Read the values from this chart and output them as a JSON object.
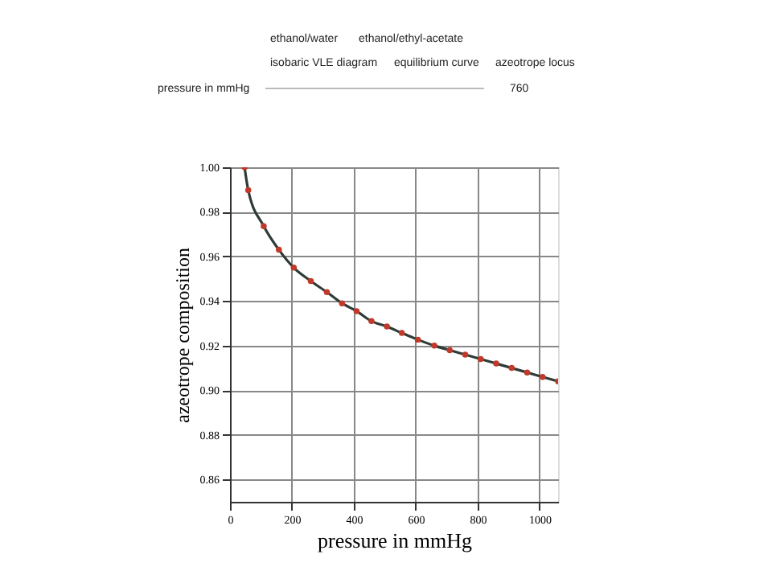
{
  "chart_data": {
    "type": "line",
    "xlabel": "pressure in mmHg",
    "ylabel": "azeotrope composition",
    "annotations": [
      "ethanol/water",
      "ethanol/ethyl-acetate",
      "isobaric VLE diagram",
      "equilibrium curve",
      "azeotrope locus",
      "pressure in mmHg",
      "760"
    ],
    "series": [
      {
        "color": "#2f3b35",
        "marker": "none",
        "x": [
          47,
          59,
          109,
          158,
          206,
          261,
          313,
          362,
          409,
          457,
          507,
          555,
          607,
          660,
          710,
          760,
          810,
          860,
          910,
          960,
          1010,
          1060
        ],
        "values": [
          1.0,
          0.9897,
          0.9736,
          0.963,
          0.955,
          0.949,
          0.944,
          0.939,
          0.9355,
          0.931,
          0.9286,
          0.9257,
          0.9227,
          0.92,
          0.918,
          0.916,
          0.914,
          0.912,
          0.91,
          0.908,
          0.906,
          0.904
        ]
      },
      {
        "type": "scatter",
        "color": "#c0392b",
        "marker": "circle",
        "x": [
          47,
          59,
          109,
          158,
          206,
          261,
          313,
          362,
          409,
          457,
          507,
          555,
          607,
          660,
          710,
          760,
          810,
          860,
          910,
          960,
          1010,
          1060
        ],
        "values": [
          1.0,
          0.9897,
          0.9736,
          0.963,
          0.955,
          0.949,
          0.944,
          0.939,
          0.9355,
          0.931,
          0.9286,
          0.9257,
          0.9227,
          0.92,
          0.918,
          0.916,
          0.914,
          0.912,
          0.91,
          0.908,
          0.906,
          0.904
        ]
      }
    ],
    "xlim": [
      0,
      1060
    ],
    "xticks": [
      0,
      200,
      400,
      600,
      800,
      1000
    ],
    "ylim": [
      0.85,
      1.0
    ],
    "yticks": [
      0.86,
      0.88,
      {
        "value": 0.9,
        "label": "0.90"
      },
      0.92,
      0.94,
      0.96,
      0.98,
      {
        "value": 1.0,
        "label": "1.00"
      }
    ],
    "grid": true
  }
}
